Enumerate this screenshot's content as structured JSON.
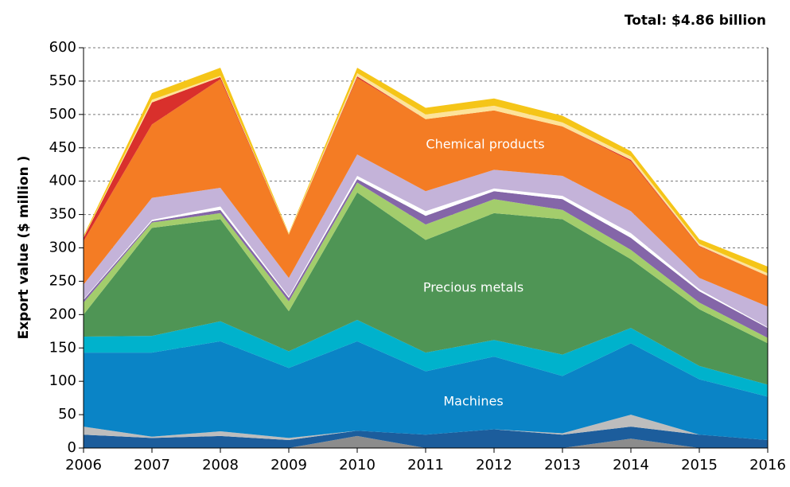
{
  "chart_data": {
    "type": "stacked_area",
    "title": "Total: $4.86 billion",
    "y_label": "Export value ($ million )",
    "annotations": [
      "Chemical products",
      "Precious metals",
      "Machines"
    ],
    "x": [
      2006,
      2007,
      2008,
      2009,
      2010,
      2011,
      2012,
      2013,
      2014,
      2015,
      2016
    ],
    "xlim": [
      2006,
      2016
    ],
    "xticks": [
      2006,
      2007,
      2008,
      2009,
      2010,
      2011,
      2012,
      2013,
      2014,
      2015,
      2016
    ],
    "ylim": [
      0,
      600
    ],
    "yticks": [
      0,
      50,
      100,
      150,
      200,
      250,
      300,
      350,
      400,
      450,
      500,
      550,
      600
    ],
    "grid": true,
    "series": [
      {
        "color": "#8c8c8c",
        "values": [
          0,
          0,
          0,
          0,
          18,
          0,
          0,
          0,
          14,
          0,
          0
        ]
      },
      {
        "color": "#1c5d9c",
        "values": [
          20,
          15,
          18,
          12,
          8,
          20,
          28,
          20,
          18,
          20,
          12
        ]
      },
      {
        "color": "#bdbdbd",
        "values": [
          12,
          2,
          7,
          3,
          0,
          0,
          0,
          2,
          18,
          0,
          0
        ]
      },
      {
        "color": "#0a84c6",
        "values": [
          111,
          126,
          135,
          105,
          134,
          95,
          109,
          86,
          107,
          83,
          65
        ]
      },
      {
        "color": "#00b2cc",
        "values": [
          24,
          25,
          30,
          25,
          32,
          28,
          25,
          32,
          23,
          20,
          18
        ]
      },
      {
        "color": "#4f9555",
        "values": [
          33,
          162,
          153,
          60,
          191,
          169,
          190,
          203,
          103,
          85,
          62
        ]
      },
      {
        "color": "#a3cd6c",
        "values": [
          18,
          8,
          9,
          15,
          15,
          23,
          21,
          14,
          14,
          10,
          8
        ]
      },
      {
        "color": "#8466a8",
        "values": [
          4,
          2,
          5,
          5,
          5,
          13,
          12,
          16,
          18,
          17,
          15
        ]
      },
      {
        "color": "#ffffff",
        "values": [
          1,
          2,
          5,
          2,
          5,
          7,
          4,
          5,
          7,
          3,
          1
        ]
      },
      {
        "color": "#c4b3d9",
        "values": [
          22,
          33,
          28,
          28,
          32,
          30,
          28,
          30,
          33,
          17,
          31
        ]
      },
      {
        "color": "#f47c24",
        "values": [
          65,
          110,
          163,
          65,
          115,
          108,
          89,
          74,
          75,
          47,
          46
        ]
      },
      {
        "color": "#d9302c",
        "values": [
          5,
          33,
          3,
          0,
          2,
          0,
          0,
          0,
          2,
          1,
          0
        ]
      },
      {
        "color": "#fde39a",
        "values": [
          1,
          4,
          2,
          1,
          5,
          7,
          7,
          6,
          5,
          3,
          4
        ]
      },
      {
        "color": "#f5c518",
        "values": [
          2,
          10,
          12,
          1,
          8,
          10,
          11,
          10,
          8,
          7,
          10
        ]
      }
    ]
  }
}
